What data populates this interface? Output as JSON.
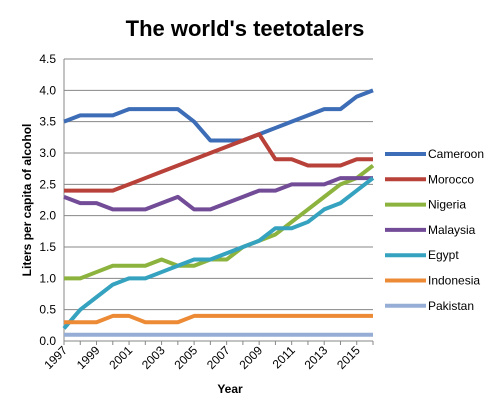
{
  "chart_data": {
    "type": "line",
    "title": "The world's teetotalers",
    "xlabel": "Year",
    "ylabel": "Liters per capita of alcohol",
    "x": [
      1997,
      1998,
      1999,
      2000,
      2001,
      2002,
      2003,
      2004,
      2005,
      2006,
      2007,
      2008,
      2009,
      2010,
      2011,
      2012,
      2013,
      2014,
      2015,
      2016
    ],
    "x_tick_labels": [
      "1997",
      "1999",
      "2001",
      "2003",
      "2005",
      "2007",
      "2009",
      "2011",
      "2013",
      "2015"
    ],
    "ylim": [
      0,
      4.5
    ],
    "y_ticks": [
      "0.0",
      "0.5",
      "1.0",
      "1.5",
      "2.0",
      "2.5",
      "3.0",
      "3.5",
      "4.0",
      "4.5"
    ],
    "grid": true,
    "legend_position": "right",
    "series": [
      {
        "name": "Cameroon",
        "color": "#3d6db6",
        "values": [
          3.5,
          3.6,
          3.6,
          3.6,
          3.7,
          3.7,
          3.7,
          3.7,
          3.5,
          3.2,
          3.2,
          3.2,
          3.3,
          3.4,
          3.5,
          3.6,
          3.7,
          3.7,
          3.9,
          4.0
        ]
      },
      {
        "name": "Morocco",
        "color": "#b8413a",
        "values": [
          2.4,
          2.4,
          2.4,
          2.4,
          2.5,
          2.6,
          2.7,
          2.8,
          2.9,
          3.0,
          3.1,
          3.2,
          3.3,
          2.9,
          2.9,
          2.8,
          2.8,
          2.8,
          2.9,
          2.9
        ]
      },
      {
        "name": "Nigeria",
        "color": "#8db33f",
        "values": [
          1.0,
          1.0,
          1.1,
          1.2,
          1.2,
          1.2,
          1.3,
          1.2,
          1.2,
          1.3,
          1.3,
          1.5,
          1.6,
          1.7,
          1.9,
          2.1,
          2.3,
          2.5,
          2.6,
          2.8
        ]
      },
      {
        "name": "Malaysia",
        "color": "#734c98",
        "values": [
          2.3,
          2.2,
          2.2,
          2.1,
          2.1,
          2.1,
          2.2,
          2.3,
          2.1,
          2.1,
          2.2,
          2.3,
          2.4,
          2.4,
          2.5,
          2.5,
          2.5,
          2.6,
          2.6,
          2.6
        ]
      },
      {
        "name": "Egypt",
        "color": "#35a2bf",
        "values": [
          0.2,
          0.5,
          0.7,
          0.9,
          1.0,
          1.0,
          1.1,
          1.2,
          1.3,
          1.3,
          1.4,
          1.5,
          1.6,
          1.8,
          1.8,
          1.9,
          2.1,
          2.2,
          2.4,
          2.6
        ]
      },
      {
        "name": "Indonesia",
        "color": "#ec8a35",
        "values": [
          0.3,
          0.3,
          0.3,
          0.4,
          0.4,
          0.3,
          0.3,
          0.3,
          0.4,
          0.4,
          0.4,
          0.4,
          0.4,
          0.4,
          0.4,
          0.4,
          0.4,
          0.4,
          0.4,
          0.4
        ]
      },
      {
        "name": "Pakistan",
        "color": "#96aed6",
        "values": [
          0.1,
          0.1,
          0.1,
          0.1,
          0.1,
          0.1,
          0.1,
          0.1,
          0.1,
          0.1,
          0.1,
          0.1,
          0.1,
          0.1,
          0.1,
          0.1,
          0.1,
          0.1,
          0.1,
          0.1
        ]
      }
    ]
  }
}
